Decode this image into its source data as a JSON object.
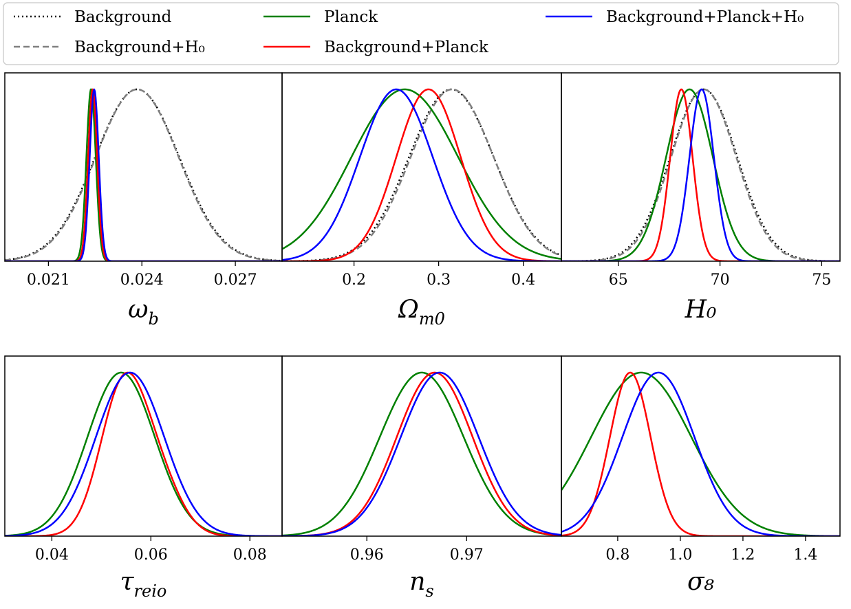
{
  "legend": {
    "placement": "top",
    "entries": [
      {
        "label": "Background",
        "color": "#000000",
        "style": "dotted"
      },
      {
        "label": "Background+H₀",
        "color": "#808080",
        "style": "dashed"
      },
      {
        "label": "Planck",
        "color": "#008000",
        "style": "solid"
      },
      {
        "label": "Background+Planck",
        "color": "#ff0000",
        "style": "solid"
      },
      {
        "label": "Background+Planck+H₀",
        "color": "#0000ff",
        "style": "solid"
      }
    ]
  },
  "chart_data": [
    {
      "type": "line",
      "xlabel": "ω_b",
      "xlim": [
        0.0196,
        0.0285
      ],
      "xticks": [
        0.021,
        0.024,
        0.027
      ],
      "xtick_labels": [
        "0.021",
        "0.024",
        "0.027"
      ],
      "grid": false,
      "series": [
        {
          "name": "Background",
          "style": "dotted",
          "color": "#000000",
          "peaks": [
            {
              "mu": 0.02385,
              "sigma": 0.00135,
              "amp": 1
            }
          ]
        },
        {
          "name": "Background+H₀",
          "style": "dashed",
          "color": "#808080",
          "peaks": [
            {
              "mu": 0.02385,
              "sigma": 0.00133,
              "amp": 1
            }
          ]
        },
        {
          "name": "Planck",
          "style": "solid",
          "color": "#008000",
          "peaks": [
            {
              "mu": 0.02237,
              "sigma": 0.00015,
              "amp": 1
            }
          ]
        },
        {
          "name": "Background+Planck",
          "style": "solid",
          "color": "#ff0000",
          "peaks": [
            {
              "mu": 0.02242,
              "sigma": 0.000145,
              "amp": 1
            }
          ]
        },
        {
          "name": "Background+Planck+H₀",
          "style": "solid",
          "color": "#0000ff",
          "peaks": [
            {
              "mu": 0.02247,
              "sigma": 0.000145,
              "amp": 1
            }
          ]
        }
      ]
    },
    {
      "type": "line",
      "xlabel": "Ω_m0",
      "xlim": [
        0.115,
        0.445
      ],
      "xticks": [
        0.2,
        0.3,
        0.4
      ],
      "xtick_labels": [
        "0.2",
        "0.3",
        "0.4"
      ],
      "grid": false,
      "series": [
        {
          "name": "Background",
          "style": "dotted",
          "color": "#000000",
          "peaks": [
            {
              "mu": 0.315,
              "sigma": 0.05,
              "amp": 1
            }
          ]
        },
        {
          "name": "Background+H₀",
          "style": "dashed",
          "color": "#808080",
          "peaks": [
            {
              "mu": 0.316,
              "sigma": 0.049,
              "amp": 1
            }
          ]
        },
        {
          "name": "Planck",
          "style": "solid",
          "color": "#008000",
          "peaks": [
            {
              "mu": 0.26,
              "sigma": 0.063,
              "amp": 1
            }
          ]
        },
        {
          "name": "Background+Planck",
          "style": "solid",
          "color": "#ff0000",
          "peaks": [
            {
              "mu": 0.288,
              "sigma": 0.038,
              "amp": 1
            }
          ]
        },
        {
          "name": "Background+Planck+H₀",
          "style": "solid",
          "color": "#0000ff",
          "peaks": [
            {
              "mu": 0.25,
              "sigma": 0.043,
              "amp": 1
            }
          ]
        }
      ]
    },
    {
      "type": "line",
      "xlabel": "H₀",
      "xlim": [
        62.2,
        75.9
      ],
      "xticks": [
        65,
        70,
        75
      ],
      "xtick_labels": [
        "65",
        "70",
        "75"
      ],
      "grid": false,
      "series": [
        {
          "name": "Background",
          "style": "dotted",
          "color": "#000000",
          "peaks": [
            {
              "mu": 69.2,
              "sigma": 1.65,
              "amp": 1
            }
          ]
        },
        {
          "name": "Background+H₀",
          "style": "dashed",
          "color": "#808080",
          "peaks": [
            {
              "mu": 69.2,
              "sigma": 1.6,
              "amp": 1
            }
          ]
        },
        {
          "name": "Planck",
          "style": "solid",
          "color": "#008000",
          "peaks": [
            {
              "mu": 68.5,
              "sigma": 1.15,
              "amp": 1
            }
          ]
        },
        {
          "name": "Background+Planck",
          "style": "solid",
          "color": "#ff0000",
          "peaks": [
            {
              "mu": 68.1,
              "sigma": 0.55,
              "amp": 1
            }
          ]
        },
        {
          "name": "Background+Planck+H₀",
          "style": "solid",
          "color": "#0000ff",
          "peaks": [
            {
              "mu": 69.1,
              "sigma": 0.6,
              "amp": 1
            }
          ]
        }
      ]
    },
    {
      "type": "line",
      "xlabel": "τ_reio",
      "xlim": [
        0.0305,
        0.0865
      ],
      "xticks": [
        0.04,
        0.06,
        0.08
      ],
      "xtick_labels": [
        "0.04",
        "0.06",
        "0.08"
      ],
      "grid": false,
      "series": [
        {
          "name": "Planck",
          "style": "solid",
          "color": "#008000",
          "peaks": [
            {
              "mu": 0.054,
              "sigma": 0.0068,
              "amp": 1
            }
          ]
        },
        {
          "name": "Background+Planck",
          "style": "solid",
          "color": "#ff0000",
          "peaks": [
            {
              "mu": 0.0545,
              "sigma": 0.0047,
              "amp": 0.88
            },
            {
              "mu": 0.0618,
              "sigma": 0.0045,
              "amp": 0.28
            }
          ]
        },
        {
          "name": "Background+Planck+H₀",
          "style": "solid",
          "color": "#0000ff",
          "peaks": [
            {
              "mu": 0.0558,
              "sigma": 0.0069,
              "amp": 1
            }
          ]
        }
      ]
    },
    {
      "type": "line",
      "xlabel": "n_s",
      "xlim": [
        0.9515,
        0.9795
      ],
      "xticks": [
        0.96,
        0.97
      ],
      "xtick_labels": [
        "0.96",
        "0.97"
      ],
      "grid": false,
      "series": [
        {
          "name": "Planck",
          "style": "solid",
          "color": "#008000",
          "peaks": [
            {
              "mu": 0.9655,
              "sigma": 0.0042,
              "amp": 1
            }
          ]
        },
        {
          "name": "Background+Planck",
          "style": "solid",
          "color": "#ff0000",
          "peaks": [
            {
              "mu": 0.9668,
              "sigma": 0.0038,
              "amp": 1
            }
          ]
        },
        {
          "name": "Background+Planck+H₀",
          "style": "solid",
          "color": "#0000ff",
          "peaks": [
            {
              "mu": 0.9673,
              "sigma": 0.0039,
              "amp": 1
            }
          ]
        }
      ]
    },
    {
      "type": "line",
      "xlabel": "σ₈",
      "xlim": [
        0.62,
        1.51
      ],
      "xticks": [
        0.8,
        1.0,
        1.2,
        1.4
      ],
      "xtick_labels": [
        "0.8",
        "1.0",
        "1.2",
        "1.4"
      ],
      "grid": false,
      "series": [
        {
          "name": "Planck",
          "style": "solid",
          "color": "#008000",
          "peaks": [
            {
              "mu": 0.875,
              "sigma": 0.16,
              "amp": 1
            }
          ]
        },
        {
          "name": "Background+Planck",
          "style": "solid",
          "color": "#ff0000",
          "peaks": [
            {
              "mu": 0.84,
              "sigma": 0.065,
              "amp": 1
            }
          ]
        },
        {
          "name": "Background+Planck+H₀",
          "style": "solid",
          "color": "#0000ff",
          "peaks": [
            {
              "mu": 0.93,
              "sigma": 0.115,
              "amp": 1
            }
          ]
        }
      ]
    }
  ]
}
